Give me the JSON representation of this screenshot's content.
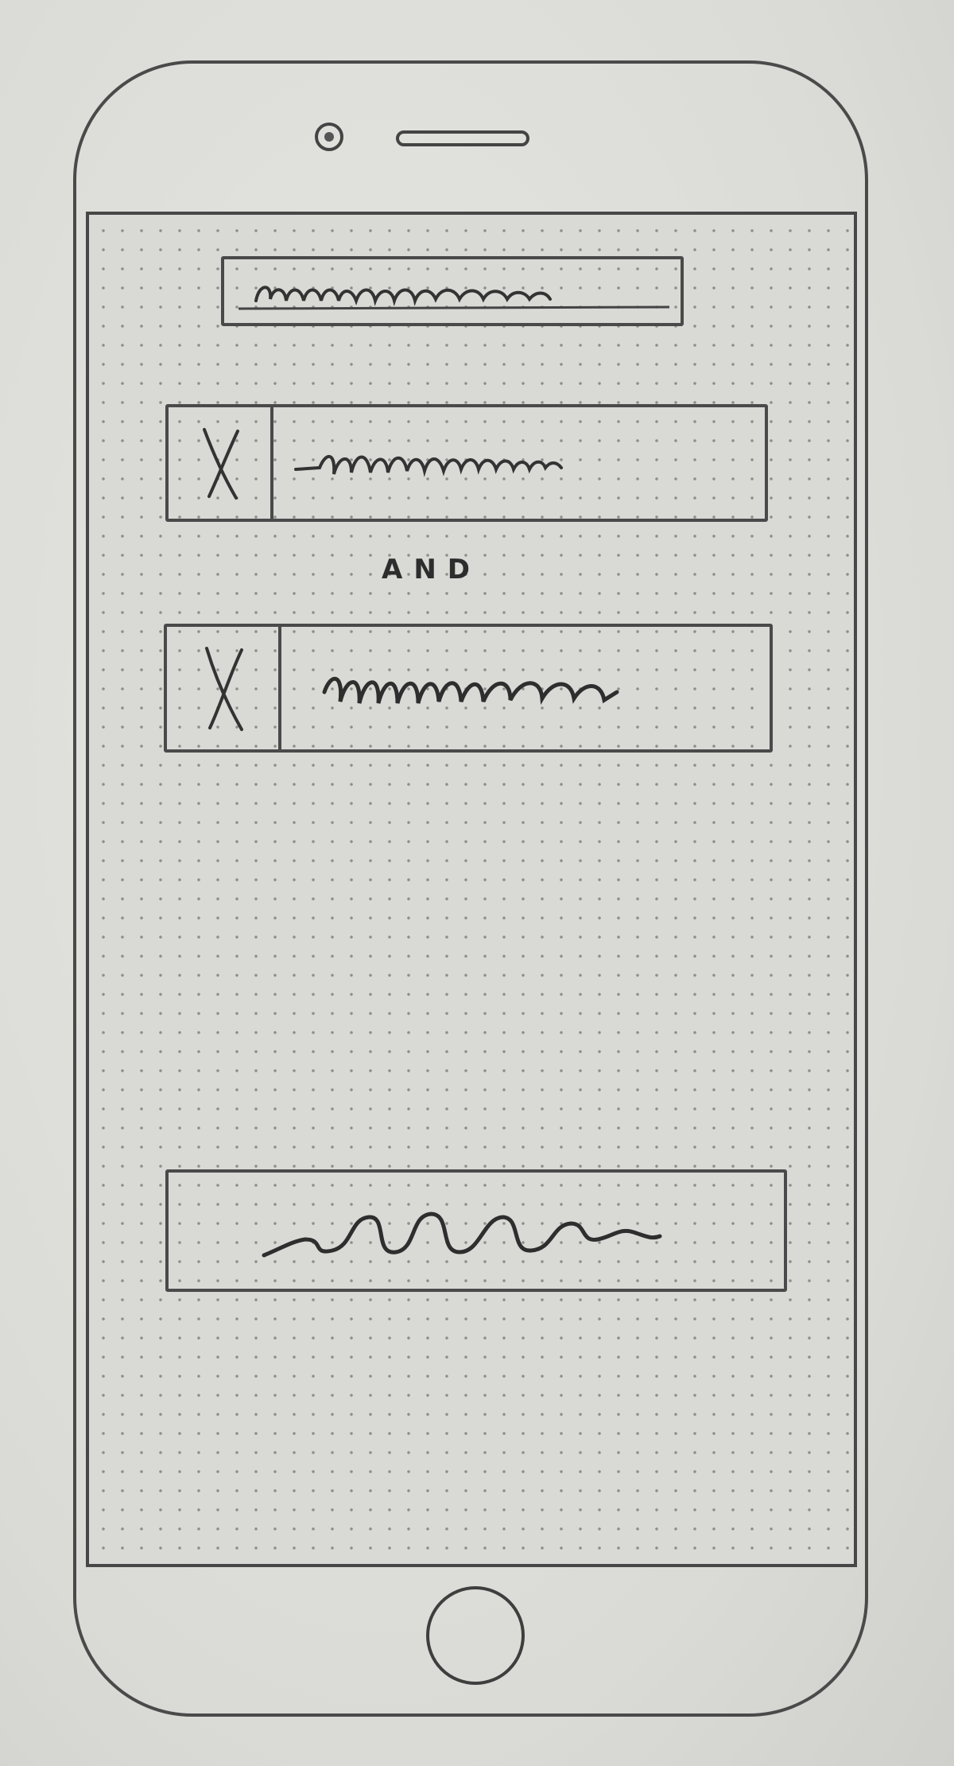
{
  "sketch": {
    "connector_label": "AND",
    "ink_color": "#3a3a3a",
    "paper_color": "#dcdcd8",
    "icons": {
      "checkbox": "x-mark-icon",
      "camera": "front-camera-icon",
      "speaker": "earpiece-icon",
      "home": "home-button-icon"
    }
  }
}
